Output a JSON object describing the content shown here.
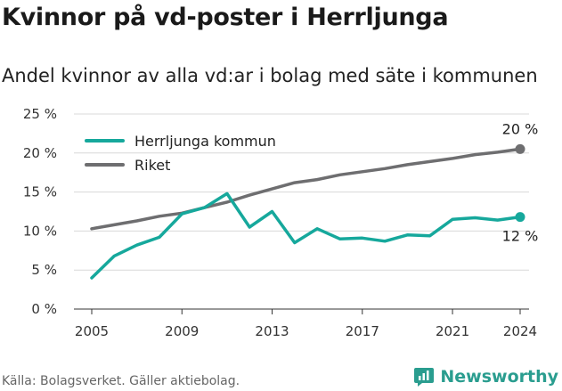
{
  "header": {
    "title": "Kvinnor på vd-poster i Herrljunga",
    "subtitle": "Andel kvinnor av alla vd:ar i bolag med säte i kommunen"
  },
  "footer": {
    "source": "Källa: Bolagsverket. Gäller aktiebolag.",
    "brand": "Newsworthy"
  },
  "colors": {
    "herrljunga": "#16a89c",
    "riket": "#6e6e70",
    "grid": "#d8d8d8",
    "brand": "#2a9d8f"
  },
  "chart_data": {
    "type": "line",
    "x": [
      2005,
      2006,
      2007,
      2008,
      2009,
      2010,
      2011,
      2012,
      2013,
      2014,
      2015,
      2016,
      2017,
      2018,
      2019,
      2020,
      2021,
      2022,
      2023,
      2024
    ],
    "series": [
      {
        "name": "Herrljunga kommun",
        "color": "#16a89c",
        "values": [
          4.0,
          6.8,
          8.2,
          9.2,
          12.2,
          13.0,
          14.8,
          10.5,
          12.5,
          8.5,
          10.3,
          9.0,
          9.1,
          8.7,
          9.5,
          9.4,
          11.5,
          11.7,
          11.4,
          11.8
        ],
        "end_label": "12 %"
      },
      {
        "name": "Riket",
        "color": "#6e6e70",
        "values": [
          10.3,
          10.8,
          11.3,
          11.9,
          12.3,
          13.0,
          13.7,
          14.6,
          15.4,
          16.2,
          16.6,
          17.2,
          17.6,
          18.0,
          18.5,
          18.9,
          19.3,
          19.8,
          20.1,
          20.5
        ],
        "end_label": "20 %"
      }
    ],
    "xticks": [
      "2005",
      "2009",
      "2013",
      "2017",
      "2021",
      "2024"
    ],
    "yticks": [
      "0 %",
      "5 %",
      "10 %",
      "15 %",
      "20 %",
      "25 %"
    ],
    "ylim": [
      0,
      25
    ],
    "grid": true,
    "legend": "top-left"
  }
}
